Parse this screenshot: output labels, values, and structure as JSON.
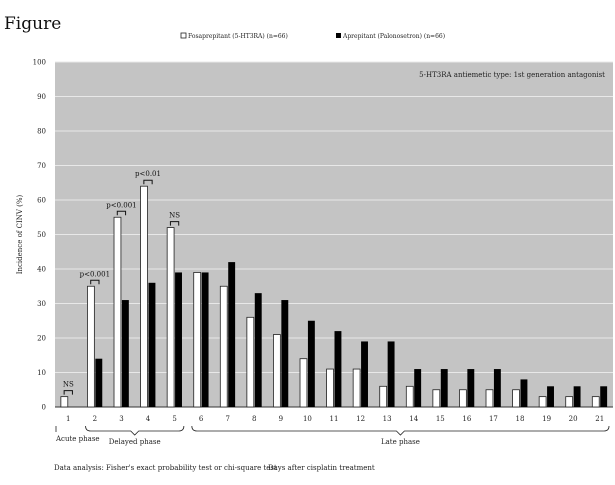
{
  "figure_label": "Figure",
  "chart_data": {
    "type": "bar",
    "categories": [
      "1",
      "2",
      "3",
      "4",
      "5",
      "6",
      "7",
      "8",
      "9",
      "10",
      "11",
      "12",
      "13",
      "14",
      "15",
      "16",
      "17",
      "18",
      "19",
      "20",
      "21"
    ],
    "series": [
      {
        "name": "Fosaprepitant (5-HT3RA) (n=66)",
        "color": "#ffffff",
        "values": [
          3,
          35,
          55,
          64,
          52,
          39,
          35,
          26,
          21,
          14,
          11,
          11,
          6,
          6,
          5,
          5,
          5,
          5,
          3,
          3,
          3
        ]
      },
      {
        "name": "Aprepitant (Palonosetron) (n=66)",
        "color": "#000000",
        "values": [
          0,
          14,
          31,
          36,
          39,
          39,
          42,
          33,
          31,
          25,
          22,
          19,
          19,
          11,
          11,
          11,
          11,
          8,
          6,
          6,
          6
        ]
      }
    ],
    "ylabel": "Incidence of CINV (%)",
    "xlabel": "Days after cisplatin treatment",
    "ylim": [
      0,
      100
    ],
    "yticks": [
      0,
      10,
      20,
      30,
      40,
      50,
      60,
      70,
      80,
      90,
      100
    ],
    "grid": true,
    "legend_position": "top",
    "annotation": "5-HT3RA antiemetic type: 1st generation antagonist",
    "significance": [
      {
        "category": "1",
        "label": "NS"
      },
      {
        "category": "2",
        "label": "p<0.001"
      },
      {
        "category": "3",
        "label": "p<0.001"
      },
      {
        "category": "4",
        "label": "p<0.01"
      },
      {
        "category": "5",
        "label": "NS"
      }
    ],
    "phases": [
      {
        "label": "Acute phase",
        "from": "1",
        "to": "1"
      },
      {
        "label": "Delayed phase",
        "from": "2",
        "to": "5"
      },
      {
        "label": "Late phase",
        "from": "6",
        "to": "21"
      }
    ],
    "footnote": "Data analysis: Fisher's exact probability test or chi-square test",
    "colors": {
      "plot_background": "#c4c4c4",
      "gridline": "#e8e8e8"
    }
  }
}
